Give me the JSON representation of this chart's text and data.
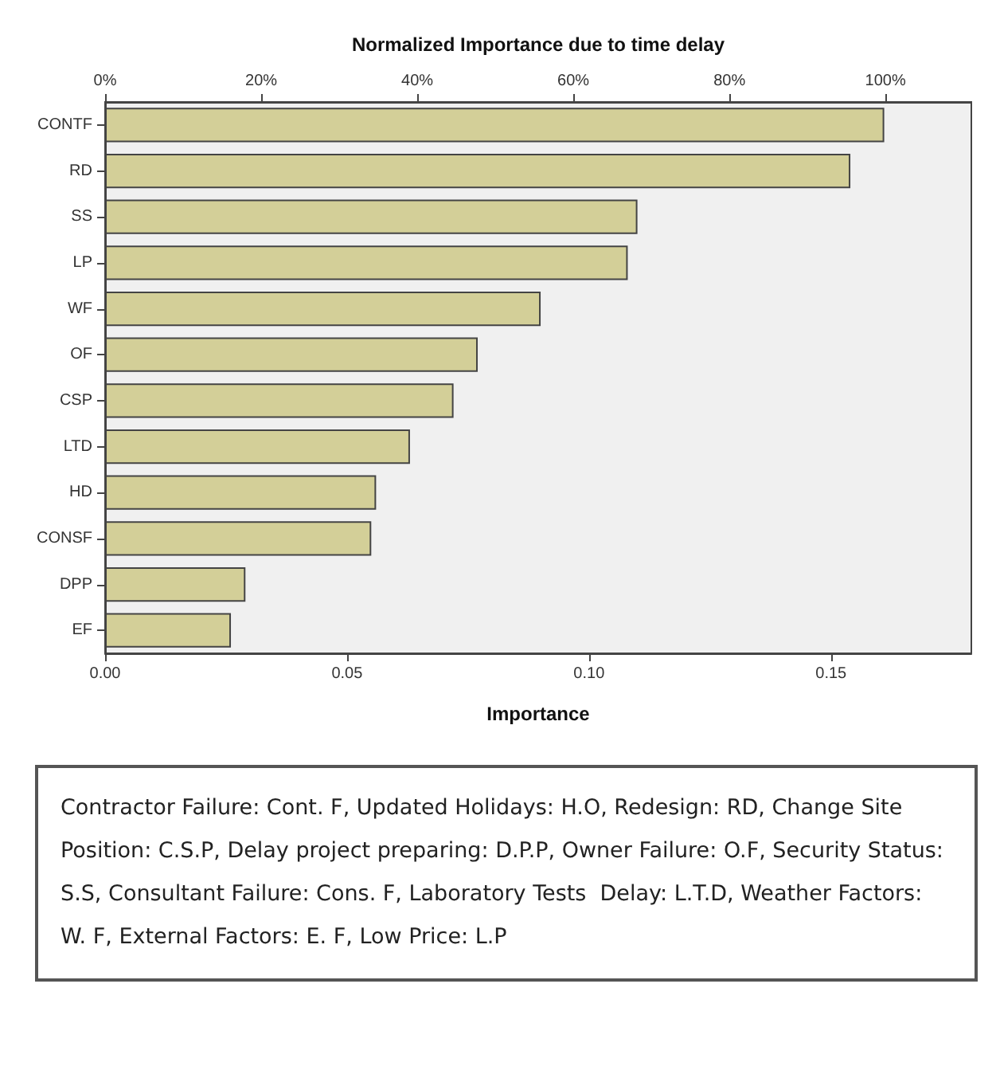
{
  "chart_data": {
    "type": "bar",
    "orientation": "horizontal",
    "x2label": "Normalized Importance due to time delay",
    "xlabel": "Importance",
    "categories": [
      "CONTF",
      "RD",
      "SS",
      "LP",
      "WF",
      "OF",
      "CSP",
      "LTD",
      "HD",
      "CONSF",
      "DPP",
      "EF"
    ],
    "values": [
      0.161,
      0.154,
      0.11,
      0.108,
      0.09,
      0.077,
      0.072,
      0.063,
      0.056,
      0.055,
      0.029,
      0.026
    ],
    "color": "#d3cf98",
    "xlim": [
      0,
      0.179
    ],
    "xticks": [
      {
        "value": 0,
        "label": "0.00"
      },
      {
        "value": 0.05,
        "label": "0.05"
      },
      {
        "value": 0.1,
        "label": "0.10"
      },
      {
        "value": 0.15,
        "label": "0.15"
      }
    ],
    "x2lim": [
      0,
      111
    ],
    "x2ticks": [
      {
        "value": 0,
        "label": "0%"
      },
      {
        "value": 20,
        "label": "20%"
      },
      {
        "value": 40,
        "label": "40%"
      },
      {
        "value": 60,
        "label": "60%"
      },
      {
        "value": 80,
        "label": "80%"
      },
      {
        "value": 100,
        "label": "100%"
      }
    ],
    "annotations": [
      "Contractor Failure: Cont. F, Updated Holidays: H.O, Redesign: RD, Change Site Position: C.S.P, Delay project preparing: D.P.P, Owner Failure: O.F, Security Status: S.S, Consultant Failure: Cons. F, Laboratory Tests  Delay: L.T.D, Weather Factors: W. F, External Factors: E. F, Low Price: L.P"
    ]
  }
}
